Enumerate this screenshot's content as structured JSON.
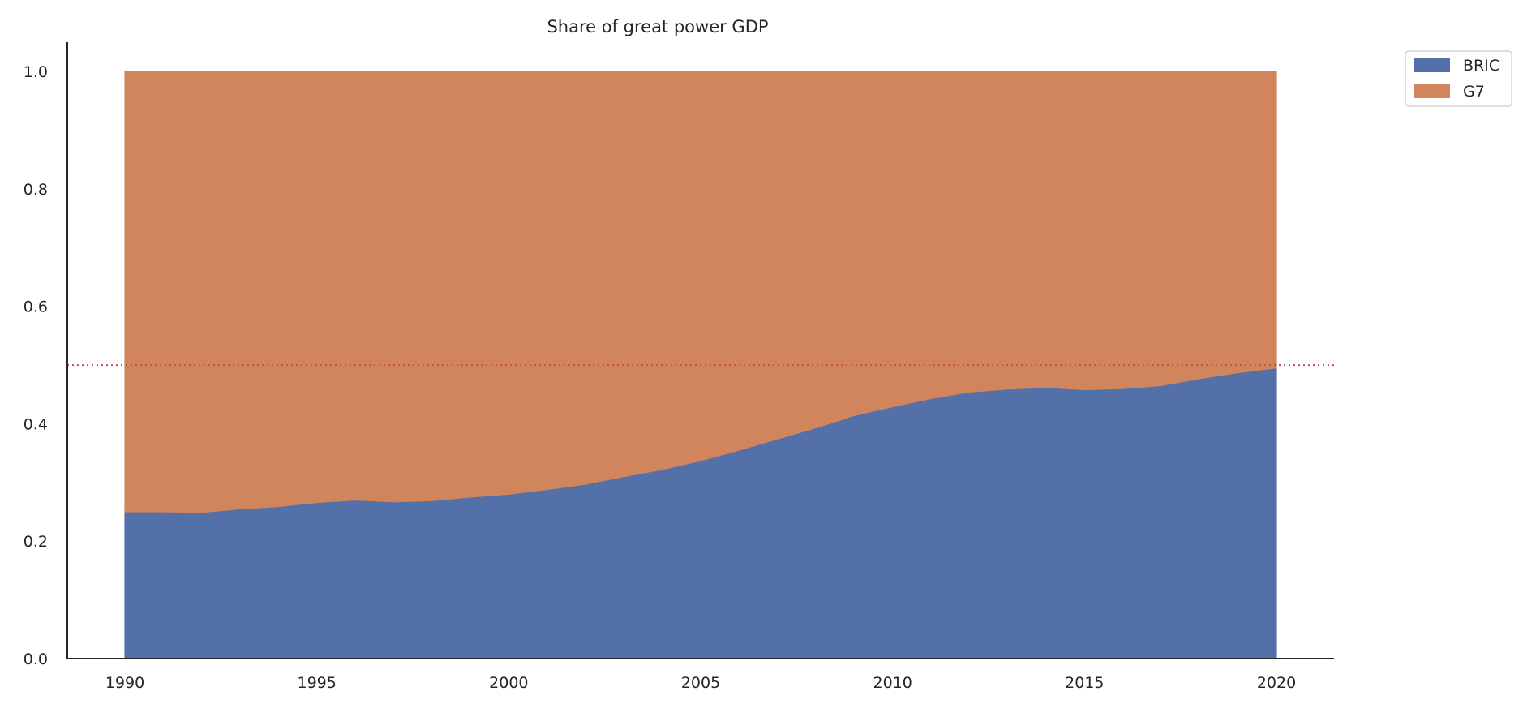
{
  "chart_data": {
    "type": "area",
    "stacked": true,
    "title": "Share of great power GDP",
    "xlabel": "",
    "ylabel": "",
    "x": [
      1990,
      1991,
      1992,
      1993,
      1994,
      1995,
      1996,
      1997,
      1998,
      1999,
      2000,
      2001,
      2002,
      2003,
      2004,
      2005,
      2006,
      2007,
      2008,
      2009,
      2010,
      2011,
      2012,
      2013,
      2014,
      2015,
      2016,
      2017,
      2018,
      2019,
      2020
    ],
    "series": [
      {
        "name": "BRIC",
        "color": "#5470a8",
        "values": [
          0.25,
          0.25,
          0.249,
          0.255,
          0.259,
          0.266,
          0.27,
          0.267,
          0.269,
          0.275,
          0.28,
          0.288,
          0.297,
          0.31,
          0.322,
          0.337,
          0.355,
          0.374,
          0.393,
          0.414,
          0.429,
          0.443,
          0.454,
          0.459,
          0.462,
          0.458,
          0.46,
          0.465,
          0.477,
          0.487,
          0.495
        ]
      },
      {
        "name": "G7",
        "color": "#d0855c",
        "values": [
          0.75,
          0.75,
          0.751,
          0.745,
          0.741,
          0.734,
          0.73,
          0.733,
          0.731,
          0.725,
          0.72,
          0.712,
          0.703,
          0.69,
          0.678,
          0.663,
          0.645,
          0.626,
          0.607,
          0.586,
          0.571,
          0.557,
          0.546,
          0.541,
          0.538,
          0.542,
          0.54,
          0.535,
          0.523,
          0.513,
          0.505
        ]
      }
    ],
    "xticks": [
      "1990",
      "1995",
      "2000",
      "2005",
      "2010",
      "2015",
      "2020"
    ],
    "yticks": [
      "0.0",
      "0.2",
      "0.4",
      "0.6",
      "0.8",
      "1.0"
    ],
    "xlim": [
      1988.5,
      2021.5
    ],
    "ylim": [
      0,
      1.05
    ],
    "reference_line": {
      "y": 0.5,
      "style": "dotted",
      "color": "#c44e52"
    },
    "grid": false,
    "legend_position": "outside top-right"
  }
}
